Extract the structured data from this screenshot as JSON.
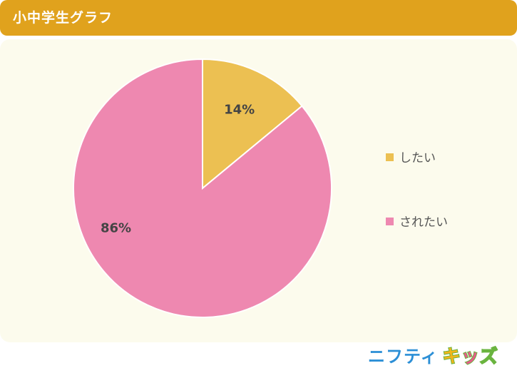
{
  "header": {
    "title": "小中学生グラフ"
  },
  "chart_data": {
    "type": "pie",
    "title": "小中学生グラフ",
    "categories": [
      "したい",
      "されたい"
    ],
    "values": [
      14,
      86
    ],
    "labels": [
      "14%",
      "86%"
    ],
    "colors": [
      "#ecc052",
      "#ee88b0"
    ],
    "start_angle": "12 o'clock",
    "direction": "clockwise",
    "legend_position": "right"
  },
  "logo": {
    "part1": "ニフティ",
    "part2": "キッズ",
    "colors": [
      "#2c8fd6",
      "#f2b51b",
      "#e85a8c",
      "#6ab43f"
    ]
  }
}
